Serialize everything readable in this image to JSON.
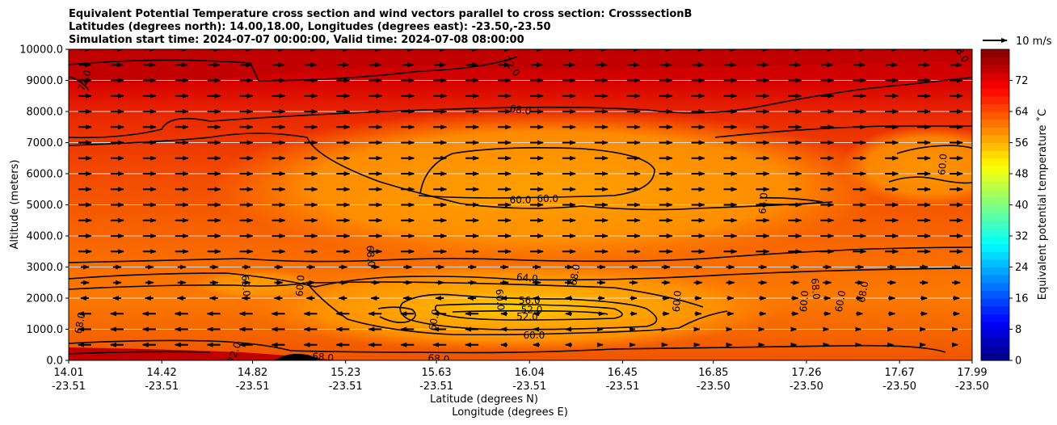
{
  "chart_data": {
    "type": "contourf",
    "title": [
      "Equivalent Potential Temperature cross section and wind vectors parallel to cross section: CrosssectionB",
      "Latitudes (degrees north): 14.00,18.00, Longitudes (degrees east): -23.50,-23.50",
      "Simulation start time: 2024-07-07 00:00:00, Valid time: 2024-07-08 08:00:00"
    ],
    "ylabel": "Altitude (meters)",
    "xlabel_lat": "Latitude (degrees N)",
    "xlabel_lon": "Longitude (degrees E)",
    "ylim": [
      0,
      10000
    ],
    "yticks": [
      "0.0",
      "1000.0",
      "2000.0",
      "3000.0",
      "4000.0",
      "5000.0",
      "6000.0",
      "7000.0",
      "8000.0",
      "9000.0",
      "10000.0"
    ],
    "xlim": [
      14.01,
      17.99
    ],
    "xticks": [
      {
        "lat": "14.01",
        "lon": "-23.51",
        "value": 14.01
      },
      {
        "lat": "14.42",
        "lon": "-23.51",
        "value": 14.42
      },
      {
        "lat": "14.82",
        "lon": "-23.51",
        "value": 14.82
      },
      {
        "lat": "15.23",
        "lon": "-23.51",
        "value": 15.23
      },
      {
        "lat": "15.63",
        "lon": "-23.51",
        "value": 15.63
      },
      {
        "lat": "16.04",
        "lon": "-23.51",
        "value": 16.04
      },
      {
        "lat": "16.45",
        "lon": "-23.51",
        "value": 16.45
      },
      {
        "lat": "16.85",
        "lon": "-23.50",
        "value": 16.85
      },
      {
        "lat": "17.26",
        "lon": "-23.50",
        "value": 17.26
      },
      {
        "lat": "17.67",
        "lon": "-23.50",
        "value": 17.67
      },
      {
        "lat": "17.99",
        "lon": "-23.50",
        "value": 17.99
      }
    ],
    "colorbar": {
      "label": "Equivalent potential temperature ˚C",
      "min": 0,
      "max": 80,
      "ticks": [
        "0",
        "8",
        "16",
        "24",
        "32",
        "40",
        "48",
        "56",
        "64",
        "72"
      ]
    },
    "quiver_key": "10 m/s",
    "contour_labels": [
      {
        "text": "72.0",
        "lat": 14.08,
        "alt": 9000,
        "rot": 70
      },
      {
        "text": "72.0",
        "lat": 15.96,
        "alt": 9450,
        "rot": -55
      },
      {
        "text": "68.0",
        "lat": 16.0,
        "alt": 8050,
        "rot": -8
      },
      {
        "text": "60.0",
        "lat": 16.12,
        "alt": 5200,
        "rot": 0
      },
      {
        "text": "60.0",
        "lat": 16.0,
        "alt": 5150,
        "rot": 0
      },
      {
        "text": "64.0",
        "lat": 17.07,
        "alt": 5050,
        "rot": 85
      },
      {
        "text": "60.0",
        "lat": 17.86,
        "alt": 6300,
        "rot": 85
      },
      {
        "text": "68.0",
        "lat": 15.34,
        "alt": 3350,
        "rot": -85
      },
      {
        "text": "68.0",
        "lat": 16.24,
        "alt": 2750,
        "rot": 80
      },
      {
        "text": "64.0",
        "lat": 16.03,
        "alt": 2650,
        "rot": -5
      },
      {
        "text": "60.0",
        "lat": 14.79,
        "alt": 2400,
        "rot": -85
      },
      {
        "text": "60.0",
        "lat": 15.03,
        "alt": 2400,
        "rot": 85
      },
      {
        "text": "56.0",
        "lat": 16.04,
        "alt": 1920,
        "rot": 0
      },
      {
        "text": "52.0",
        "lat": 16.05,
        "alt": 1620,
        "rot": 0
      },
      {
        "text": "52.0",
        "lat": 16.03,
        "alt": 1400,
        "rot": 0
      },
      {
        "text": "60.0",
        "lat": 15.91,
        "alt": 1950,
        "rot": -85
      },
      {
        "text": "60.0",
        "lat": 15.62,
        "alt": 1300,
        "rot": 80
      },
      {
        "text": "60.0",
        "lat": 16.06,
        "alt": 800,
        "rot": 0
      },
      {
        "text": "60.0",
        "lat": 16.69,
        "alt": 1900,
        "rot": 85
      },
      {
        "text": "68.0",
        "lat": 17.3,
        "alt": 2300,
        "rot": -85
      },
      {
        "text": "60.0",
        "lat": 17.25,
        "alt": 1900,
        "rot": 85
      },
      {
        "text": "68.0",
        "lat": 17.51,
        "alt": 2200,
        "rot": 80
      },
      {
        "text": "60.0",
        "lat": 17.41,
        "alt": 1900,
        "rot": 80
      },
      {
        "text": "68.0",
        "lat": 14.06,
        "alt": 1200,
        "rot": 80
      },
      {
        "text": "72.0",
        "lat": 14.74,
        "alt": 250,
        "rot": 70
      },
      {
        "text": "68.0",
        "lat": 15.13,
        "alt": 100,
        "rot": -5
      },
      {
        "text": "68.0",
        "lat": 15.64,
        "alt": 50,
        "rot": -5
      },
      {
        "text": "68.0",
        "lat": 17.94,
        "alt": 9900,
        "rot": -60
      }
    ]
  }
}
